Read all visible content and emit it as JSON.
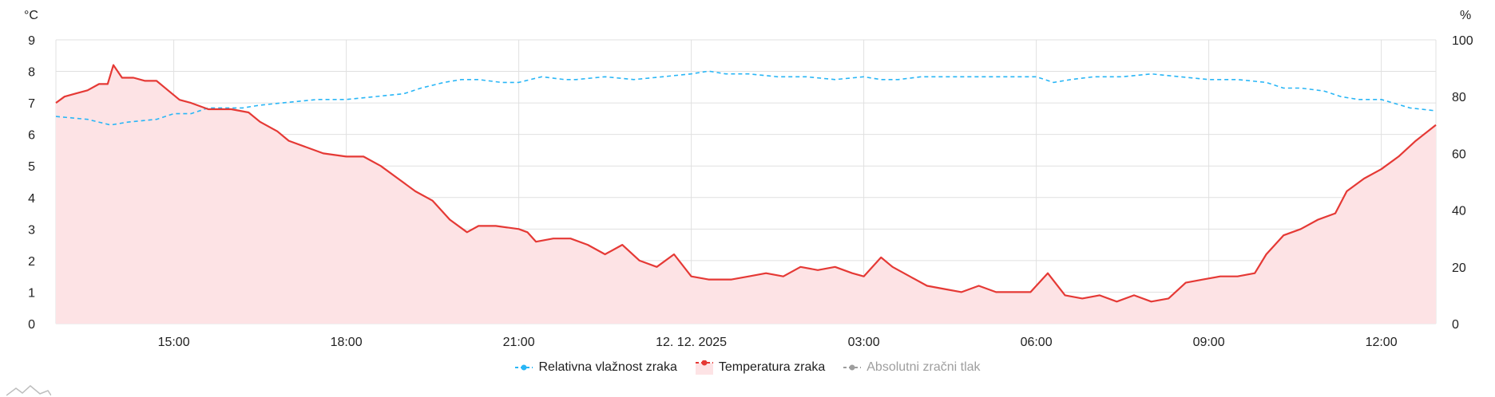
{
  "colors": {
    "humidity": "#29b6f6",
    "temperature": "#e53935",
    "temperature_fill": "#fde3e5",
    "pressure": "#9e9e9e",
    "grid": "#e0e0e0"
  },
  "chart_data": {
    "type": "line",
    "left_axis": {
      "unit": "°C",
      "ticks": [
        "0",
        "1",
        "2",
        "3",
        "4",
        "5",
        "6",
        "7",
        "8",
        "9"
      ],
      "range": [
        0,
        9
      ]
    },
    "right_axis": {
      "unit": "%",
      "ticks": [
        "0",
        "20",
        "40",
        "60",
        "80",
        "100"
      ],
      "range": [
        0,
        100
      ]
    },
    "x_tick_labels": [
      "15:00",
      "18:00",
      "21:00",
      "12. 12. 2025",
      "03:00",
      "06:00",
      "09:00",
      "12:00"
    ],
    "x_tick_hours": [
      15,
      18,
      21,
      24,
      27,
      30,
      33,
      36
    ],
    "x_range_hours": [
      12.95,
      36.95
    ],
    "legend_position": "bottom",
    "series": [
      {
        "name": "Relativna vlažnost zraka",
        "axis": "right",
        "style": "dashed",
        "points": [
          [
            12.95,
            73
          ],
          [
            13.5,
            72
          ],
          [
            13.9,
            70
          ],
          [
            14.2,
            71
          ],
          [
            14.7,
            72
          ],
          [
            15,
            74
          ],
          [
            15.3,
            74
          ],
          [
            15.6,
            76
          ],
          [
            16.2,
            76
          ],
          [
            16.5,
            77
          ],
          [
            17,
            78
          ],
          [
            17.5,
            79
          ],
          [
            18,
            79
          ],
          [
            18.5,
            80
          ],
          [
            19,
            81
          ],
          [
            19.3,
            83
          ],
          [
            19.7,
            85
          ],
          [
            20,
            86
          ],
          [
            20.3,
            86
          ],
          [
            20.7,
            85
          ],
          [
            21,
            85
          ],
          [
            21.2,
            86
          ],
          [
            21.4,
            87
          ],
          [
            21.8,
            86
          ],
          [
            22,
            86
          ],
          [
            22.5,
            87
          ],
          [
            23,
            86
          ],
          [
            23.5,
            87
          ],
          [
            24,
            88
          ],
          [
            24.3,
            89
          ],
          [
            24.6,
            88
          ],
          [
            25,
            88
          ],
          [
            25.5,
            87
          ],
          [
            26,
            87
          ],
          [
            26.5,
            86
          ],
          [
            27,
            87
          ],
          [
            27.3,
            86
          ],
          [
            27.6,
            86
          ],
          [
            28,
            87
          ],
          [
            28.5,
            87
          ],
          [
            29,
            87
          ],
          [
            29.5,
            87
          ],
          [
            30,
            87
          ],
          [
            30.3,
            85
          ],
          [
            30.6,
            86
          ],
          [
            31,
            87
          ],
          [
            31.5,
            87
          ],
          [
            32,
            88
          ],
          [
            32.5,
            87
          ],
          [
            33,
            86
          ],
          [
            33.5,
            86
          ],
          [
            34,
            85
          ],
          [
            34.3,
            83
          ],
          [
            34.6,
            83
          ],
          [
            35,
            82
          ],
          [
            35.3,
            80
          ],
          [
            35.6,
            79
          ],
          [
            36,
            79
          ],
          [
            36.5,
            76
          ],
          [
            36.95,
            75
          ]
        ]
      },
      {
        "name": "Temperatura zraka",
        "axis": "left",
        "style": "solid",
        "fill": true,
        "points": [
          [
            12.95,
            7.0
          ],
          [
            13.1,
            7.2
          ],
          [
            13.3,
            7.3
          ],
          [
            13.5,
            7.4
          ],
          [
            13.7,
            7.6
          ],
          [
            13.85,
            7.6
          ],
          [
            13.95,
            8.2
          ],
          [
            14.1,
            7.8
          ],
          [
            14.3,
            7.8
          ],
          [
            14.5,
            7.7
          ],
          [
            14.7,
            7.7
          ],
          [
            14.9,
            7.4
          ],
          [
            15.1,
            7.1
          ],
          [
            15.3,
            7.0
          ],
          [
            15.6,
            6.8
          ],
          [
            16,
            6.8
          ],
          [
            16.3,
            6.7
          ],
          [
            16.5,
            6.4
          ],
          [
            16.8,
            6.1
          ],
          [
            17,
            5.8
          ],
          [
            17.3,
            5.6
          ],
          [
            17.6,
            5.4
          ],
          [
            18,
            5.3
          ],
          [
            18.3,
            5.3
          ],
          [
            18.6,
            5.0
          ],
          [
            18.9,
            4.6
          ],
          [
            19.2,
            4.2
          ],
          [
            19.5,
            3.9
          ],
          [
            19.8,
            3.3
          ],
          [
            20.1,
            2.9
          ],
          [
            20.3,
            3.1
          ],
          [
            20.6,
            3.1
          ],
          [
            21,
            3.0
          ],
          [
            21.15,
            2.9
          ],
          [
            21.3,
            2.6
          ],
          [
            21.6,
            2.7
          ],
          [
            21.9,
            2.7
          ],
          [
            22.2,
            2.5
          ],
          [
            22.5,
            2.2
          ],
          [
            22.8,
            2.5
          ],
          [
            23.1,
            2.0
          ],
          [
            23.4,
            1.8
          ],
          [
            23.7,
            2.2
          ],
          [
            24,
            1.5
          ],
          [
            24.3,
            1.4
          ],
          [
            24.7,
            1.4
          ],
          [
            25,
            1.5
          ],
          [
            25.3,
            1.6
          ],
          [
            25.6,
            1.5
          ],
          [
            25.9,
            1.8
          ],
          [
            26.2,
            1.7
          ],
          [
            26.5,
            1.8
          ],
          [
            26.8,
            1.6
          ],
          [
            27,
            1.5
          ],
          [
            27.3,
            2.1
          ],
          [
            27.5,
            1.8
          ],
          [
            27.8,
            1.5
          ],
          [
            28.1,
            1.2
          ],
          [
            28.4,
            1.1
          ],
          [
            28.7,
            1.0
          ],
          [
            29,
            1.2
          ],
          [
            29.3,
            1.0
          ],
          [
            29.6,
            1.0
          ],
          [
            29.9,
            1.0
          ],
          [
            30.2,
            1.6
          ],
          [
            30.5,
            0.9
          ],
          [
            30.8,
            0.8
          ],
          [
            31.1,
            0.9
          ],
          [
            31.4,
            0.7
          ],
          [
            31.7,
            0.9
          ],
          [
            32,
            0.7
          ],
          [
            32.3,
            0.8
          ],
          [
            32.6,
            1.3
          ],
          [
            32.9,
            1.4
          ],
          [
            33.2,
            1.5
          ],
          [
            33.5,
            1.5
          ],
          [
            33.8,
            1.6
          ],
          [
            34,
            2.2
          ],
          [
            34.3,
            2.8
          ],
          [
            34.6,
            3.0
          ],
          [
            34.9,
            3.3
          ],
          [
            35.2,
            3.5
          ],
          [
            35.4,
            4.2
          ],
          [
            35.7,
            4.6
          ],
          [
            36,
            4.9
          ],
          [
            36.3,
            5.3
          ],
          [
            36.6,
            5.8
          ],
          [
            36.95,
            6.3
          ]
        ]
      },
      {
        "name": "Absolutni zračni tlak",
        "axis": "none",
        "style": "dashed",
        "hidden": true,
        "points": []
      }
    ]
  }
}
